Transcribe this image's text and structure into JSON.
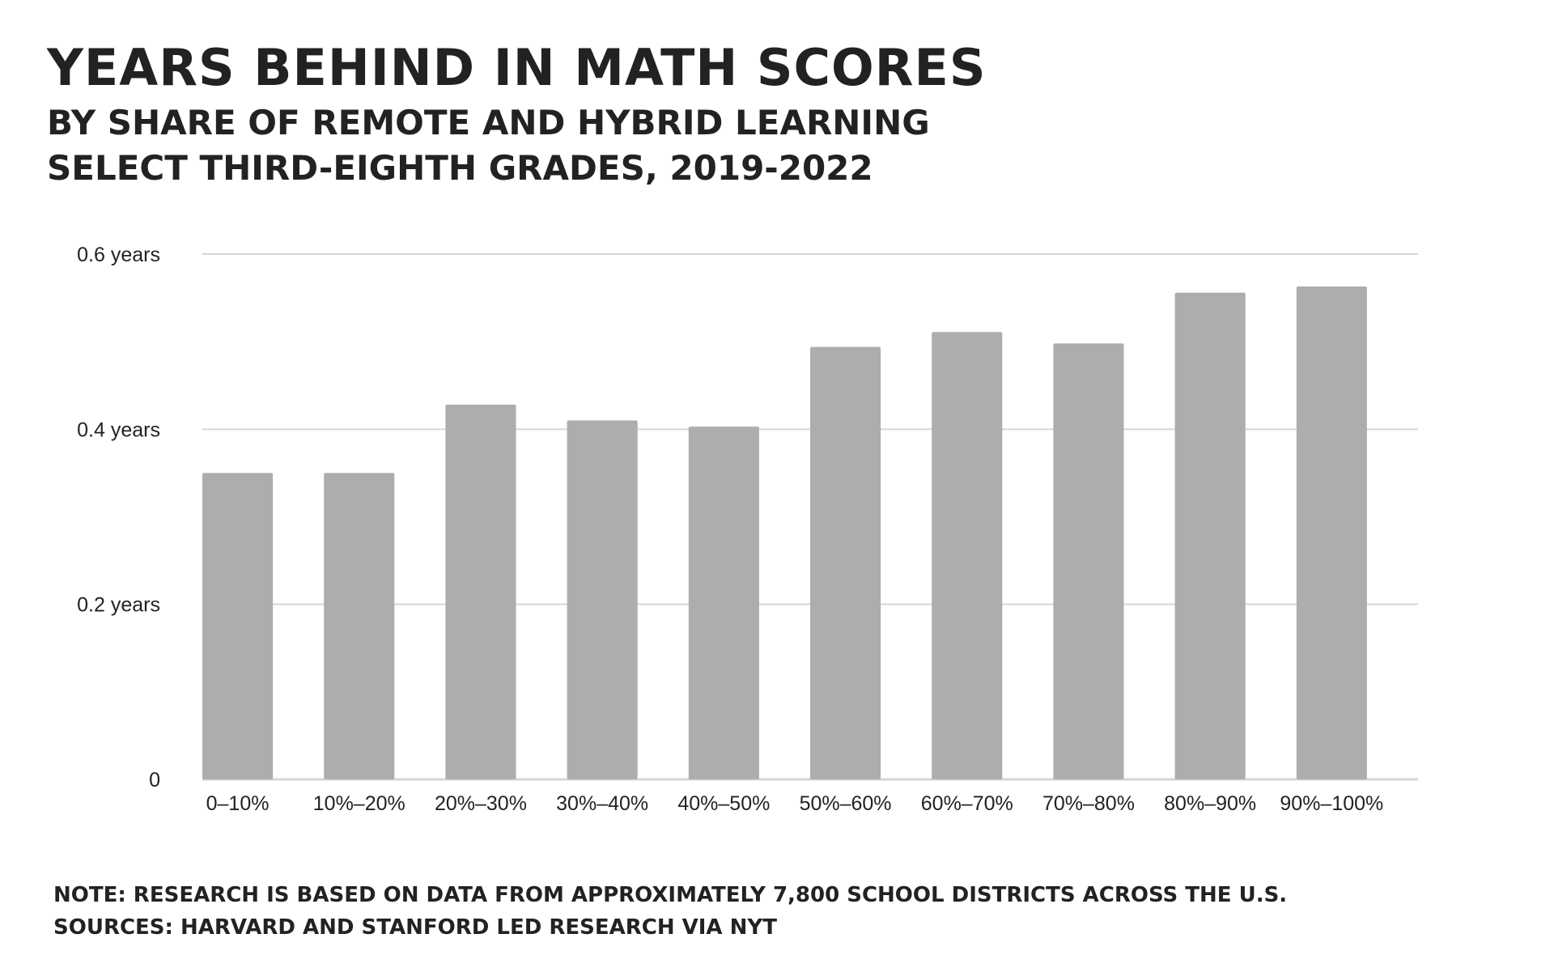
{
  "title": "YEARS BEHIND IN MATH SCORES",
  "subtitle_lines": [
    "BY SHARE OF REMOTE AND HYBRID LEARNING",
    "SELECT THIRD-EIGHTH GRADES, 2019-2022"
  ],
  "footer": {
    "note": "NOTE: RESEARCH IS BASED ON DATA FROM APPROXIMATELY 7,800 SCHOOL DISTRICTS ACROSS THE U.S.",
    "sources": "SOURCES: HARVARD AND STANFORD LED RESEARCH VIA NYT"
  },
  "chart_data": {
    "type": "bar",
    "title": "YEARS BEHIND IN MATH SCORES",
    "xlabel": "",
    "ylabel": "",
    "categories": [
      "0–10%",
      "10%–20%",
      "20%–30%",
      "30%–40%",
      "40%–50%",
      "50%–60%",
      "60%–70%",
      "70%–80%",
      "80%–90%",
      "90%–100%"
    ],
    "values": [
      0.35,
      0.35,
      0.428,
      0.41,
      0.403,
      0.494,
      0.511,
      0.498,
      0.556,
      0.563
    ],
    "ylim": [
      0,
      0.6
    ],
    "yticks": [
      {
        "value": 0,
        "label": "0"
      },
      {
        "value": 0.2,
        "label": "0.2 years"
      },
      {
        "value": 0.4,
        "label": "0.4 years"
      },
      {
        "value": 0.6,
        "label": "0.6 years"
      }
    ],
    "grid": true,
    "legend": "none",
    "bar_color": "#adadac",
    "grid_color": "#d6d6d6"
  }
}
